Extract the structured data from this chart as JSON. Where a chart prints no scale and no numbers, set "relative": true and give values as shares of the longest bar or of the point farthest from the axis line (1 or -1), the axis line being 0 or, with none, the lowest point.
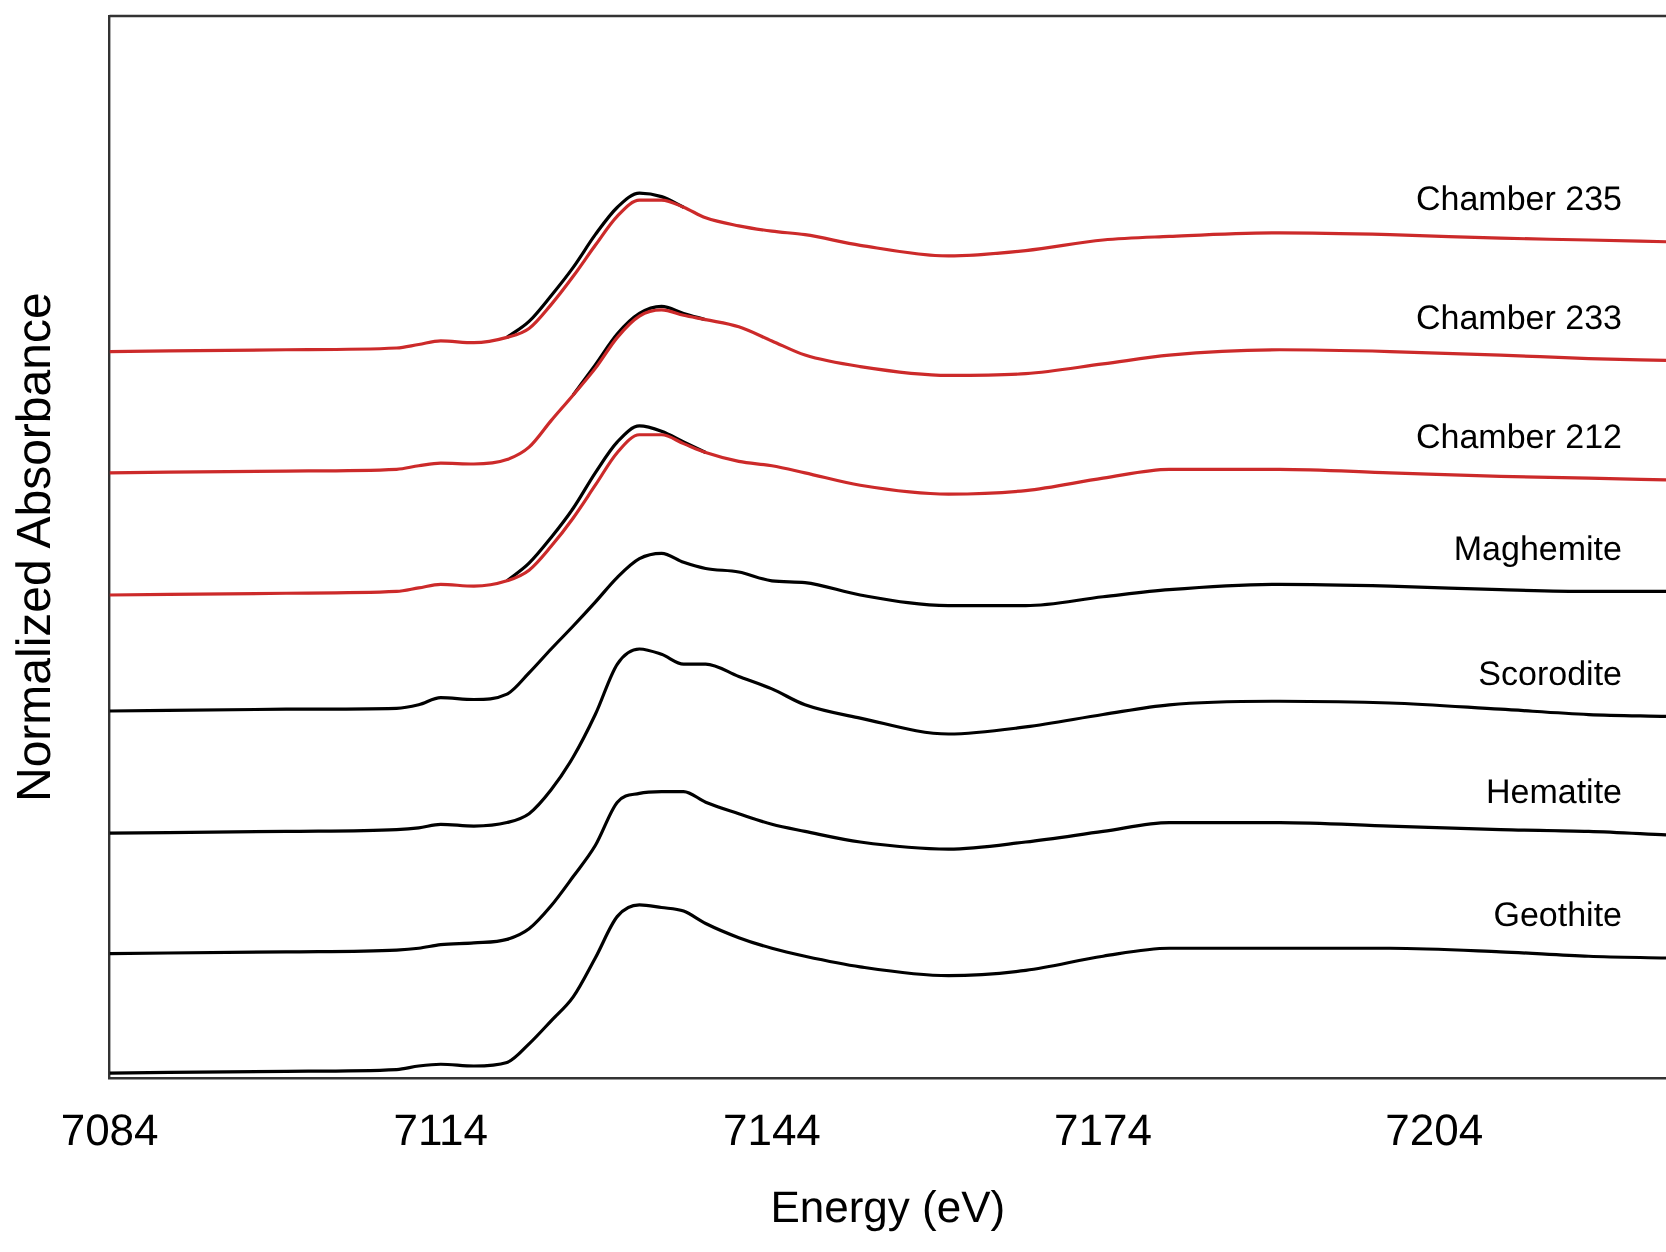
{
  "chart_data": {
    "type": "line",
    "relative": true,
    "xlabel": "Energy (eV)",
    "ylabel": "Normalized Absorbance",
    "x": [
      7084,
      7100,
      7110,
      7112,
      7114,
      7117,
      7120,
      7122,
      7124,
      7126,
      7128,
      7130,
      7132,
      7134,
      7136,
      7138,
      7141,
      7144,
      7147,
      7152,
      7160,
      7167,
      7174,
      7180,
      7190,
      7200,
      7210,
      7218,
      7225
    ],
    "xlim": [
      7084,
      7225
    ],
    "xticks": [
      7084,
      7114,
      7144,
      7174,
      7204
    ],
    "grid": false,
    "legend": false,
    "marker": "none",
    "line_style": "solid",
    "series": [
      {
        "name": "Geothite",
        "color": "#000000",
        "values": [
          0.006,
          0.008,
          0.01,
          0.014,
          0.016,
          0.014,
          0.018,
          0.039,
          0.065,
          0.092,
          0.136,
          0.183,
          0.196,
          0.193,
          0.189,
          0.175,
          0.159,
          0.147,
          0.138,
          0.126,
          0.116,
          0.122,
          0.138,
          0.147,
          0.147,
          0.147,
          0.143,
          0.138,
          0.136
        ]
      },
      {
        "name": "Hematite",
        "color": "#000000",
        "values": [
          0.141,
          0.143,
          0.145,
          0.147,
          0.151,
          0.153,
          0.157,
          0.169,
          0.195,
          0.228,
          0.263,
          0.312,
          0.322,
          0.324,
          0.324,
          0.312,
          0.299,
          0.287,
          0.279,
          0.267,
          0.259,
          0.267,
          0.279,
          0.289,
          0.289,
          0.285,
          0.281,
          0.279,
          0.275
        ]
      },
      {
        "name": "Scorodite",
        "color": "#000000",
        "values": [
          0.277,
          0.279,
          0.281,
          0.283,
          0.287,
          0.285,
          0.289,
          0.299,
          0.326,
          0.363,
          0.411,
          0.468,
          0.485,
          0.479,
          0.468,
          0.468,
          0.454,
          0.44,
          0.422,
          0.407,
          0.389,
          0.397,
          0.411,
          0.422,
          0.426,
          0.424,
          0.417,
          0.411,
          0.409
        ]
      },
      {
        "name": "Maghemite",
        "color": "#000000",
        "values": [
          0.415,
          0.417,
          0.418,
          0.422,
          0.43,
          0.428,
          0.434,
          0.458,
          0.485,
          0.511,
          0.538,
          0.566,
          0.587,
          0.593,
          0.583,
          0.576,
          0.572,
          0.562,
          0.56,
          0.546,
          0.534,
          0.534,
          0.544,
          0.552,
          0.558,
          0.556,
          0.552,
          0.55,
          0.55
        ]
      },
      {
        "color": "#000000",
        "values": [
          null,
          null,
          null,
          null,
          null,
          null,
          0.562,
          0.582,
          0.611,
          0.644,
          0.684,
          0.719,
          0.737,
          0.731,
          0.719,
          0.707,
          null,
          null,
          null,
          null,
          null,
          null,
          null,
          null,
          null,
          null,
          null,
          null,
          null
        ]
      },
      {
        "name": "Chamber 212",
        "color": "#cc2a2a",
        "values": [
          0.546,
          0.548,
          0.55,
          0.554,
          0.558,
          0.556,
          0.562,
          0.574,
          0.601,
          0.633,
          0.67,
          0.707,
          0.727,
          0.727,
          0.717,
          0.707,
          0.697,
          0.692,
          0.684,
          0.67,
          0.66,
          0.664,
          0.678,
          0.688,
          0.688,
          0.684,
          0.68,
          0.678,
          0.676
        ]
      },
      {
        "color": "#000000",
        "values": [
          null,
          null,
          null,
          null,
          null,
          null,
          null,
          null,
          null,
          0.772,
          0.806,
          0.841,
          0.864,
          0.872,
          0.864,
          0.857,
          null,
          null,
          null,
          null,
          null,
          null,
          null,
          null,
          null,
          null,
          null,
          null,
          null
        ]
      },
      {
        "name": "Chamber 233",
        "color": "#cc2a2a",
        "values": [
          0.684,
          0.686,
          0.688,
          0.692,
          0.695,
          0.694,
          0.699,
          0.713,
          0.743,
          0.772,
          0.802,
          0.837,
          0.861,
          0.868,
          0.862,
          0.857,
          0.849,
          0.833,
          0.817,
          0.804,
          0.794,
          0.796,
          0.807,
          0.817,
          0.823,
          0.821,
          0.817,
          0.813,
          0.811
        ]
      },
      {
        "color": "#000000",
        "values": [
          null,
          null,
          null,
          null,
          null,
          null,
          0.837,
          0.855,
          0.884,
          0.916,
          0.953,
          0.984,
          1,
          0.996,
          0.984,
          null,
          null,
          null,
          null,
          null,
          null,
          null,
          null,
          null,
          null,
          null,
          null,
          null,
          null
        ]
      },
      {
        "name": "Chamber 235",
        "color": "#cc2a2a",
        "values": [
          0.821,
          0.823,
          0.825,
          0.829,
          0.833,
          0.831,
          0.837,
          0.847,
          0.874,
          0.906,
          0.941,
          0.974,
          0.992,
          0.992,
          0.984,
          0.972,
          0.963,
          0.957,
          0.953,
          0.941,
          0.929,
          0.935,
          0.947,
          0.951,
          0.955,
          0.953,
          0.949,
          0.947,
          0.945
        ]
      }
    ]
  }
}
